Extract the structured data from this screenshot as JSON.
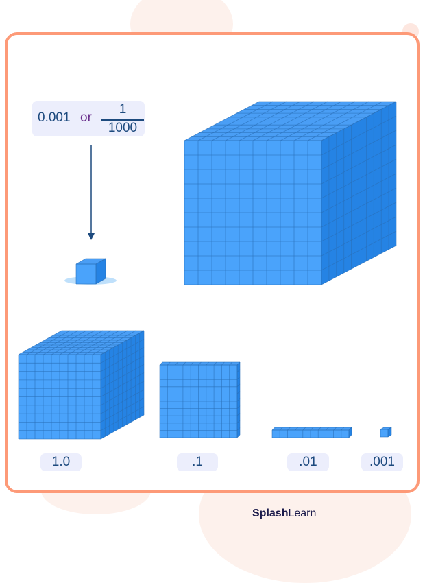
{
  "callout": {
    "decimal": "0.001",
    "or": "or",
    "numerator": "1",
    "denominator": "1000"
  },
  "labels": [
    "1.0",
    ".1",
    ".01",
    ".001"
  ],
  "logo": {
    "splash": "Splash",
    "learn": "Learn"
  },
  "colors": {
    "front": "#4aa3fb",
    "top": "#4a9ef5",
    "side": "#2583e4",
    "grid": "#2a6fb8",
    "border": "#fd9a78",
    "label_bg": "#eceefc",
    "text": "#1d4a7e"
  }
}
